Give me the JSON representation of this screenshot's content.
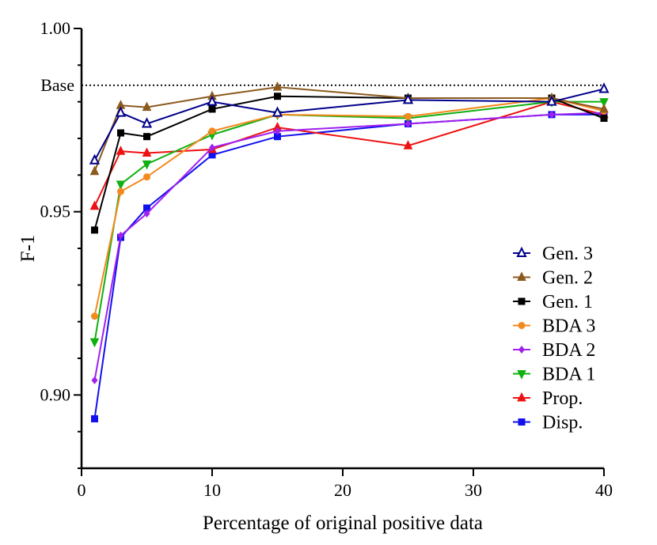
{
  "chart_data": {
    "type": "line",
    "xlabel": "Percentage of original positive data",
    "ylabel": "F-1",
    "xlim": [
      0,
      40
    ],
    "ylim": [
      0.88,
      1.0
    ],
    "xticks": [
      0,
      10,
      20,
      30,
      40
    ],
    "yticks": [
      0.9,
      0.95,
      1.0
    ],
    "ytick_labels": [
      "0.90",
      "0.95",
      "1.00"
    ],
    "minor_yticks": [
      0.88,
      0.89,
      0.91,
      0.92,
      0.93,
      0.94,
      0.96,
      0.97,
      0.98,
      0.99
    ],
    "reference_line": {
      "label": "Base",
      "y": 0.9845
    },
    "legend_position": "right",
    "grid": false,
    "series": [
      {
        "name": "Gen. 3",
        "color": "#00008B",
        "marker": "triangle-open",
        "x": [
          1,
          3,
          5,
          10,
          15,
          25,
          36,
          40
        ],
        "y": [
          0.964,
          0.977,
          0.974,
          0.98,
          0.977,
          0.9805,
          0.98,
          0.9835
        ]
      },
      {
        "name": "Gen. 2",
        "color": "#8B5A1E",
        "marker": "triangle",
        "x": [
          1,
          3,
          5,
          10,
          15,
          25,
          36,
          40
        ],
        "y": [
          0.961,
          0.979,
          0.9785,
          0.9815,
          0.984,
          0.981,
          0.981,
          0.978
        ]
      },
      {
        "name": "Gen. 1",
        "color": "#000000",
        "marker": "square",
        "x": [
          1,
          3,
          5,
          10,
          15,
          25,
          36,
          40
        ],
        "y": [
          0.945,
          0.9715,
          0.9705,
          0.978,
          0.9815,
          0.981,
          0.981,
          0.9755
        ]
      },
      {
        "name": "BDA 3",
        "color": "#F4891F",
        "marker": "circle",
        "x": [
          1,
          3,
          5,
          10,
          15,
          25,
          36,
          40
        ],
        "y": [
          0.9215,
          0.9555,
          0.9595,
          0.972,
          0.9765,
          0.976,
          0.981,
          0.9775
        ]
      },
      {
        "name": "BDA 2",
        "color": "#A020F0",
        "marker": "diamond",
        "x": [
          1,
          3,
          5,
          10,
          15,
          25,
          36,
          40
        ],
        "y": [
          0.904,
          0.9435,
          0.9495,
          0.9675,
          0.972,
          0.974,
          0.9765,
          0.977
        ]
      },
      {
        "name": "BDA 1",
        "color": "#10B010",
        "marker": "triangle-down",
        "x": [
          1,
          3,
          5,
          10,
          15,
          25,
          36,
          40
        ],
        "y": [
          0.9145,
          0.9575,
          0.963,
          0.971,
          0.9765,
          0.9755,
          0.98,
          0.98
        ]
      },
      {
        "name": "Prop.",
        "color": "#EE1111",
        "marker": "triangle",
        "x": [
          1,
          3,
          5,
          10,
          15,
          25,
          36,
          40
        ],
        "y": [
          0.9515,
          0.9665,
          0.966,
          0.967,
          0.973,
          0.968,
          0.98,
          0.9765
        ]
      },
      {
        "name": "Disp.",
        "color": "#1111EE",
        "marker": "square",
        "x": [
          1,
          3,
          5,
          10,
          15,
          25,
          36,
          40
        ],
        "y": [
          0.8935,
          0.943,
          0.951,
          0.9655,
          0.9705,
          0.974,
          0.9765,
          0.9765
        ]
      }
    ]
  }
}
